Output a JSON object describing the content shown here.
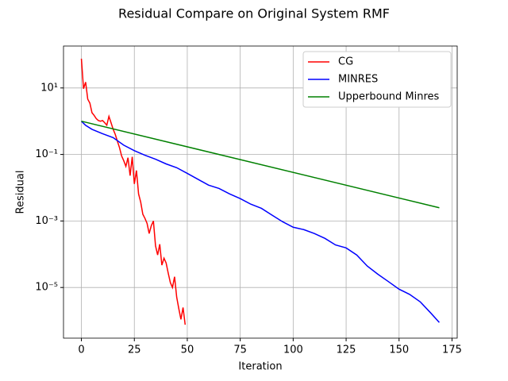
{
  "chart_data": {
    "type": "line",
    "title": "Residual Compare on Original System RMF",
    "x_label": "Iteration",
    "y_label": "Residual",
    "xlim": [
      -8.45,
      177.45
    ],
    "xticks": [
      0,
      25,
      50,
      75,
      100,
      125,
      150,
      175
    ],
    "ylim": [
      3e-07,
      182
    ],
    "log_y": true,
    "yticks": [
      {
        "value": 10,
        "label": "10¹"
      },
      {
        "value": 0.1,
        "label": "10⁻¹"
      },
      {
        "value": 0.001,
        "label": "10⁻³"
      },
      {
        "value": 1e-05,
        "label": "10⁻⁵"
      }
    ],
    "grid": true,
    "legend": "upper right",
    "series": [
      {
        "name": "CG",
        "color": "#ff0000",
        "x": [
          0,
          1,
          2,
          3,
          4,
          5,
          6,
          7,
          8,
          9,
          10,
          11,
          12,
          13,
          14,
          15,
          16,
          17,
          18,
          19,
          20,
          21,
          22,
          23,
          24,
          25,
          26,
          27,
          28,
          29,
          30,
          31,
          32,
          33,
          34,
          35,
          36,
          37,
          38,
          39,
          40,
          41,
          42,
          43,
          44,
          45,
          46,
          47,
          48,
          49
        ],
        "values": [
          76,
          9.5,
          15,
          4.6,
          3.5,
          1.8,
          1.5,
          1.2,
          1.05,
          1.0,
          1.05,
          0.9,
          0.76,
          1.4,
          0.9,
          0.57,
          0.4,
          0.25,
          0.16,
          0.09,
          0.065,
          0.044,
          0.08,
          0.023,
          0.085,
          0.013,
          0.033,
          0.0065,
          0.0037,
          0.0016,
          0.0012,
          0.00085,
          0.00042,
          0.00072,
          0.001,
          0.00018,
          9.5e-05,
          0.0002,
          4.7e-05,
          7.6e-05,
          5.5e-05,
          2.7e-05,
          1.4e-05,
          1e-05,
          2.1e-05,
          5.1e-06,
          2.3e-06,
          1.1e-06,
          2.5e-06,
          7.6e-07
        ]
      },
      {
        "name": "MINRES",
        "color": "#0000ff",
        "x": [
          0,
          2,
          5,
          10,
          15,
          20,
          25,
          30,
          35,
          40,
          45,
          50,
          55,
          60,
          65,
          70,
          75,
          80,
          85,
          90,
          95,
          100,
          105,
          110,
          115,
          120,
          125,
          130,
          135,
          140,
          145,
          150,
          155,
          160,
          165,
          169
        ],
        "values": [
          1.0,
          0.75,
          0.57,
          0.42,
          0.32,
          0.19,
          0.13,
          0.095,
          0.072,
          0.052,
          0.04,
          0.027,
          0.018,
          0.012,
          0.0095,
          0.0065,
          0.0047,
          0.0032,
          0.0024,
          0.0015,
          0.00095,
          0.00065,
          0.00055,
          0.00042,
          0.0003,
          0.00019,
          0.000155,
          9.5e-05,
          4.4e-05,
          2.5e-05,
          1.5e-05,
          8.9e-06,
          6.2e-06,
          3.7e-06,
          1.7e-06,
          8.9e-07
        ]
      },
      {
        "name": "Upperbound Minres",
        "color": "#008000",
        "x": [
          0,
          169
        ],
        "values": [
          1.0,
          0.0025
        ]
      }
    ]
  }
}
